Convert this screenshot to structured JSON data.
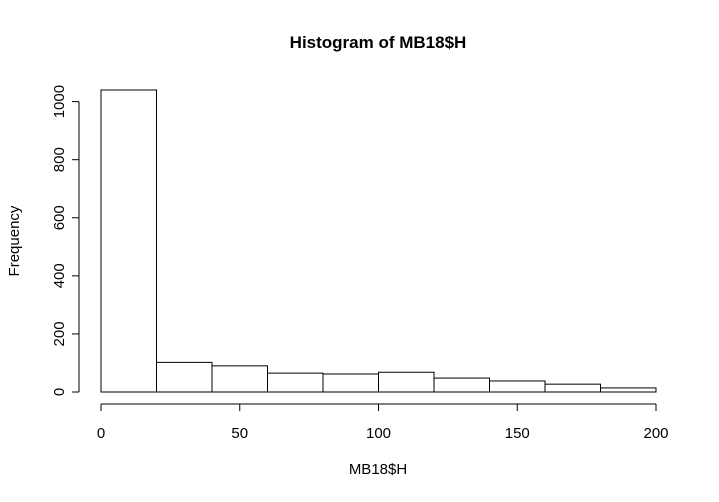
{
  "chart_data": {
    "type": "bar",
    "title": "Histogram of MB18$H",
    "xlabel": "MB18$H",
    "ylabel": "Frequency",
    "bin_edges": [
      0,
      20,
      40,
      60,
      80,
      100,
      120,
      140,
      160,
      180,
      200
    ],
    "values": [
      1040,
      102,
      90,
      65,
      62,
      68,
      48,
      38,
      27,
      14
    ],
    "xlim": [
      0,
      200
    ],
    "ylim": [
      0,
      1040
    ],
    "x_ticks": [
      0,
      50,
      100,
      150,
      200
    ],
    "y_ticks": [
      0,
      200,
      400,
      600,
      800,
      1000
    ],
    "grid": false,
    "colors": {
      "bar_fill": "#ffffff",
      "bar_stroke": "#000000"
    }
  }
}
